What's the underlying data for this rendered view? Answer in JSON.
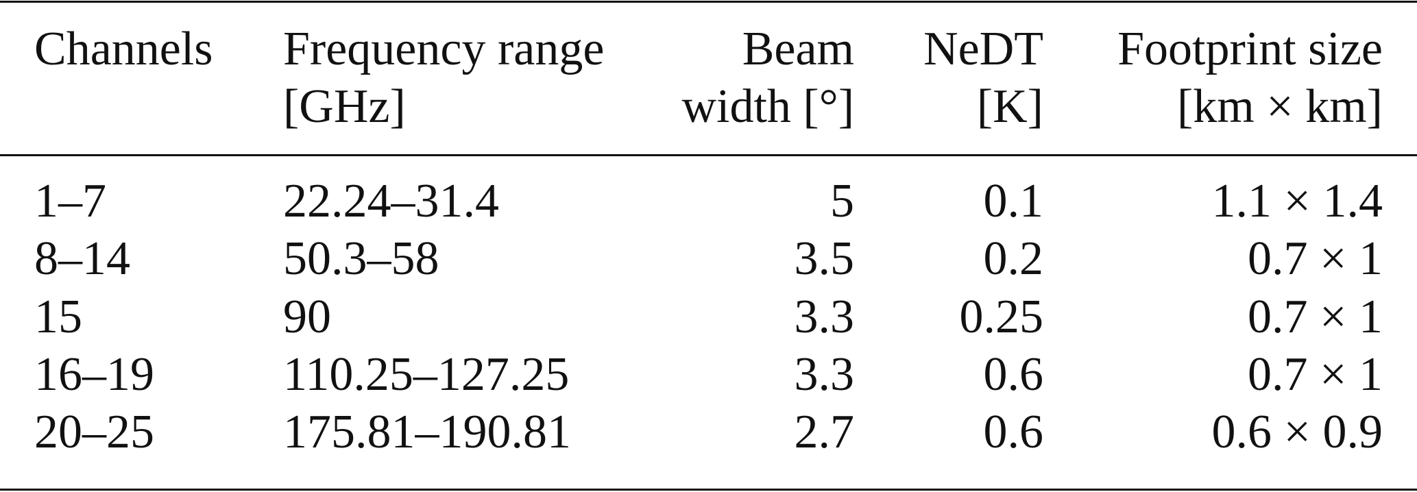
{
  "table": {
    "headers": [
      {
        "line1": "Channels",
        "line2": ""
      },
      {
        "line1": "Frequency range",
        "line2": "[GHz]"
      },
      {
        "line1": "Beam",
        "line2": "width [°]"
      },
      {
        "line1": "NeDT",
        "line2": "[K]"
      },
      {
        "line1": "Footprint size",
        "line2": "[km × km]"
      }
    ],
    "rows": [
      [
        "1–7",
        "22.24–31.4",
        "5",
        "0.1",
        "1.1 × 1.4"
      ],
      [
        "8–14",
        "50.3–58",
        "3.5",
        "0.2",
        "0.7 × 1"
      ],
      [
        "15",
        "90",
        "3.3",
        "0.25",
        "0.7 × 1"
      ],
      [
        "16–19",
        "110.25–127.25",
        "3.3",
        "0.6",
        "0.7 × 1"
      ],
      [
        "20–25",
        "175.81–190.81",
        "2.7",
        "0.6",
        "0.6 × 0.9"
      ]
    ]
  }
}
